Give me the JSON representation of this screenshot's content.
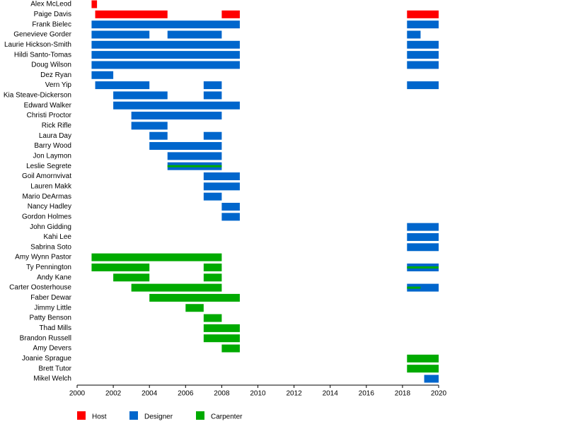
{
  "chart_data": {
    "type": "timeline",
    "categories": [
      "Alex McLeod",
      "Paige Davis",
      "Frank Bielec",
      "Genevieve Gorder",
      "Laurie Hickson-Smith",
      "Hildi Santo-Tomas",
      "Doug Wilson",
      "Dez Ryan",
      "Vern Yip",
      "Kia Steave-Dickerson",
      "Edward Walker",
      "Christi Proctor",
      "Rick Rifle",
      "Laura Day",
      "Barry Wood",
      "Jon Laymon",
      "Leslie Segrete",
      "Goil Amornvivat",
      "Lauren Makk",
      "Mario DeArmas",
      "Nancy Hadley",
      "Gordon Holmes",
      "John Gidding",
      "Kahi Lee",
      "Sabrina Soto",
      "Amy Wynn Pastor",
      "Ty Pennington",
      "Andy Kane",
      "Carter Oosterhouse",
      "Faber Dewar",
      "Jimmy Little",
      "Patty Benson",
      "Thad Mills",
      "Brandon Russell",
      "Amy Devers",
      "Joanie Sprague",
      "Brett Tutor",
      "Mikel Welch"
    ],
    "series": [
      {
        "name": "Host",
        "color": "#ff0000",
        "values": [
          [
            [
              2000.8,
              2001.1
            ]
          ],
          [
            [
              2001,
              2005
            ],
            [
              2008,
              2009
            ],
            [
              2018.25,
              2020
            ]
          ],
          [],
          [],
          [],
          [],
          [],
          [],
          [],
          [],
          [],
          [],
          [],
          [],
          [],
          [],
          [],
          [],
          [],
          [],
          [],
          [],
          [],
          [],
          [],
          [],
          [],
          [],
          [],
          [],
          [],
          [],
          [],
          [],
          [],
          [],
          [],
          []
        ]
      },
      {
        "name": "Designer",
        "color": "#0066cc",
        "values": [
          [],
          [],
          [
            [
              2000.8,
              2009
            ],
            [
              2018.25,
              2020
            ]
          ],
          [
            [
              2000.8,
              2004
            ],
            [
              2005,
              2008
            ],
            [
              2018.25,
              2019
            ]
          ],
          [
            [
              2000.8,
              2009
            ],
            [
              2018.25,
              2020
            ]
          ],
          [
            [
              2000.8,
              2009
            ],
            [
              2018.25,
              2020
            ]
          ],
          [
            [
              2000.8,
              2009
            ],
            [
              2018.25,
              2020
            ]
          ],
          [
            [
              2000.8,
              2002
            ]
          ],
          [
            [
              2001,
              2004
            ],
            [
              2007,
              2008
            ],
            [
              2018.25,
              2020
            ]
          ],
          [
            [
              2002,
              2005
            ],
            [
              2007,
              2008
            ]
          ],
          [
            [
              2002,
              2009
            ]
          ],
          [
            [
              2003,
              2008
            ]
          ],
          [
            [
              2003,
              2005
            ]
          ],
          [
            [
              2004,
              2005
            ],
            [
              2007,
              2008
            ]
          ],
          [
            [
              2004,
              2008
            ]
          ],
          [
            [
              2005,
              2008
            ]
          ],
          [
            [
              2005,
              2008
            ]
          ],
          [
            [
              2007,
              2009
            ]
          ],
          [
            [
              2007,
              2009
            ]
          ],
          [
            [
              2007,
              2008
            ]
          ],
          [
            [
              2008,
              2009
            ]
          ],
          [
            [
              2008,
              2009
            ]
          ],
          [
            [
              2018.25,
              2020
            ]
          ],
          [
            [
              2018.25,
              2020
            ]
          ],
          [
            [
              2018.25,
              2020
            ]
          ],
          [],
          [
            [
              2018.25,
              2020
            ]
          ],
          [],
          [
            [
              2018.25,
              2020
            ]
          ],
          [],
          [],
          [],
          [],
          [],
          [],
          [],
          [],
          [
            [
              2019.2,
              2020
            ]
          ]
        ]
      },
      {
        "name": "Carpenter",
        "color": "#00aa00",
        "values": [
          [],
          [],
          [],
          [],
          [],
          [],
          [],
          [],
          [],
          [],
          [],
          [],
          [],
          [],
          [],
          [],
          [
            [
              2005,
              2008
            ]
          ],
          [],
          [],
          [],
          [],
          [],
          [],
          [],
          [],
          [
            [
              2000.8,
              2008
            ]
          ],
          [
            [
              2000.8,
              2004
            ],
            [
              2007,
              2008
            ],
            [
              2018.25,
              2020
            ]
          ],
          [
            [
              2002,
              2004
            ],
            [
              2007,
              2008
            ]
          ],
          [
            [
              2003,
              2008
            ],
            [
              2018.25,
              2019
            ]
          ],
          [
            [
              2004,
              2009
            ]
          ],
          [
            [
              2006,
              2007
            ]
          ],
          [
            [
              2007,
              2008
            ]
          ],
          [
            [
              2007,
              2009
            ]
          ],
          [
            [
              2007,
              2009
            ]
          ],
          [
            [
              2008,
              2009
            ]
          ],
          [
            [
              2018.25,
              2020
            ]
          ],
          [
            [
              2018.25,
              2020
            ]
          ],
          []
        ]
      }
    ],
    "xlim": [
      2000,
      2020
    ],
    "xticks": [
      2000,
      2002,
      2004,
      2006,
      2008,
      2010,
      2012,
      2014,
      2016,
      2018,
      2020
    ]
  }
}
